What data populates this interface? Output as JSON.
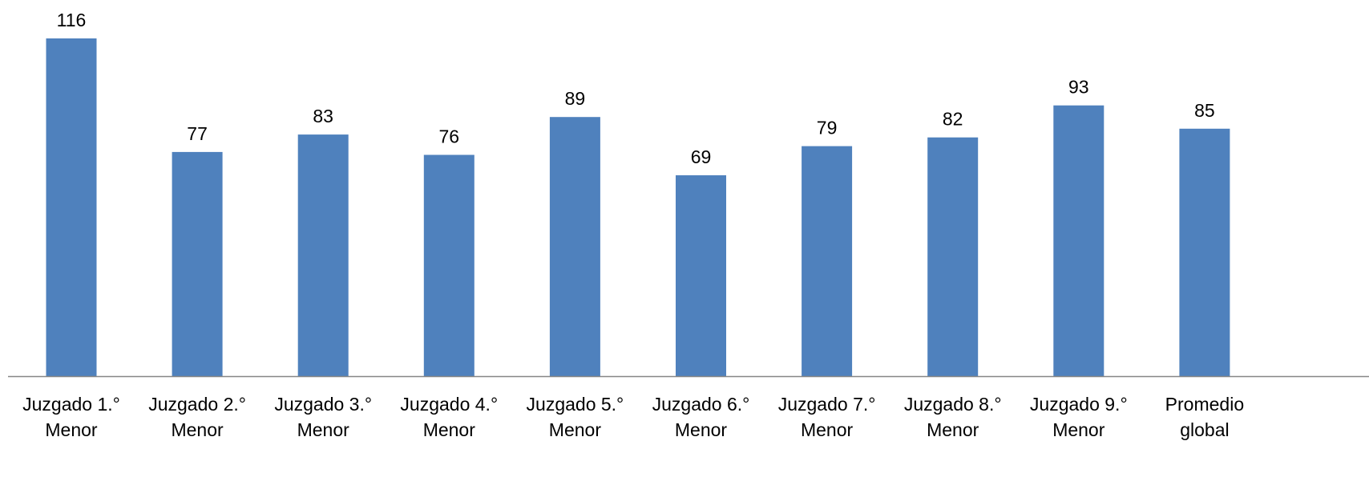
{
  "chart_data": {
    "type": "bar",
    "title": "",
    "xlabel": "",
    "ylabel": "",
    "categories": [
      [
        "Juzgado 1.°",
        "Menor"
      ],
      [
        "Juzgado 2.°",
        "Menor"
      ],
      [
        "Juzgado 3.°",
        "Menor"
      ],
      [
        "Juzgado 4.°",
        "Menor"
      ],
      [
        "Juzgado 5.°",
        "Menor"
      ],
      [
        "Juzgado 6.°",
        "Menor"
      ],
      [
        "Juzgado 7.°",
        "Menor"
      ],
      [
        "Juzgado 8.°",
        "Menor"
      ],
      [
        "Juzgado 9.°",
        "Menor"
      ],
      [
        "Promedio",
        "global"
      ]
    ],
    "values": [
      116,
      77,
      83,
      76,
      89,
      69,
      79,
      82,
      93,
      85
    ],
    "data_labels": [
      "116",
      "77",
      "83",
      "76",
      "89",
      "69",
      "79",
      "82",
      "93",
      "85"
    ],
    "ylim": [
      0,
      116
    ],
    "grid": false,
    "legend": "none",
    "colors": {
      "bar": "#4f81bd",
      "axis": "#868686"
    }
  }
}
